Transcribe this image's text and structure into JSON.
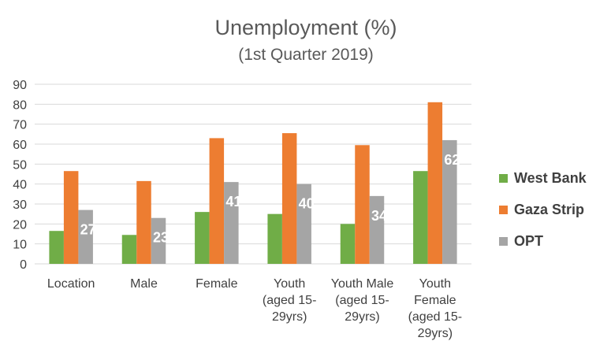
{
  "chart_data": {
    "type": "bar",
    "title": "Unemployment (%)",
    "subtitle": "(1st Quarter 2019)",
    "categories": [
      [
        "Location"
      ],
      [
        "Male"
      ],
      [
        "Female"
      ],
      [
        "Youth",
        "(aged 15-",
        "29yrs)"
      ],
      [
        "Youth Male",
        "(aged 15-",
        "29yrs)"
      ],
      [
        "Youth",
        "Female",
        "(aged 15-",
        "29yrs)"
      ]
    ],
    "series": [
      {
        "name": "West Bank",
        "color": "#70ad47",
        "values": [
          16.5,
          14.5,
          26,
          25,
          20,
          46.5
        ]
      },
      {
        "name": "Gaza Strip",
        "color": "#ed7d31",
        "values": [
          46.5,
          41.5,
          63,
          65.5,
          59.5,
          81
        ]
      },
      {
        "name": "OPT",
        "color": "#a5a5a5",
        "values": [
          27,
          23,
          41,
          40,
          34,
          62
        ]
      }
    ],
    "data_labels": {
      "series": "OPT",
      "values": [
        "27",
        "23",
        "41",
        "40",
        "34",
        "62"
      ]
    },
    "ylim": [
      0,
      90
    ],
    "yticks": [
      0,
      10,
      20,
      30,
      40,
      50,
      60,
      70,
      80,
      90
    ],
    "grid": true,
    "legend": "right"
  }
}
